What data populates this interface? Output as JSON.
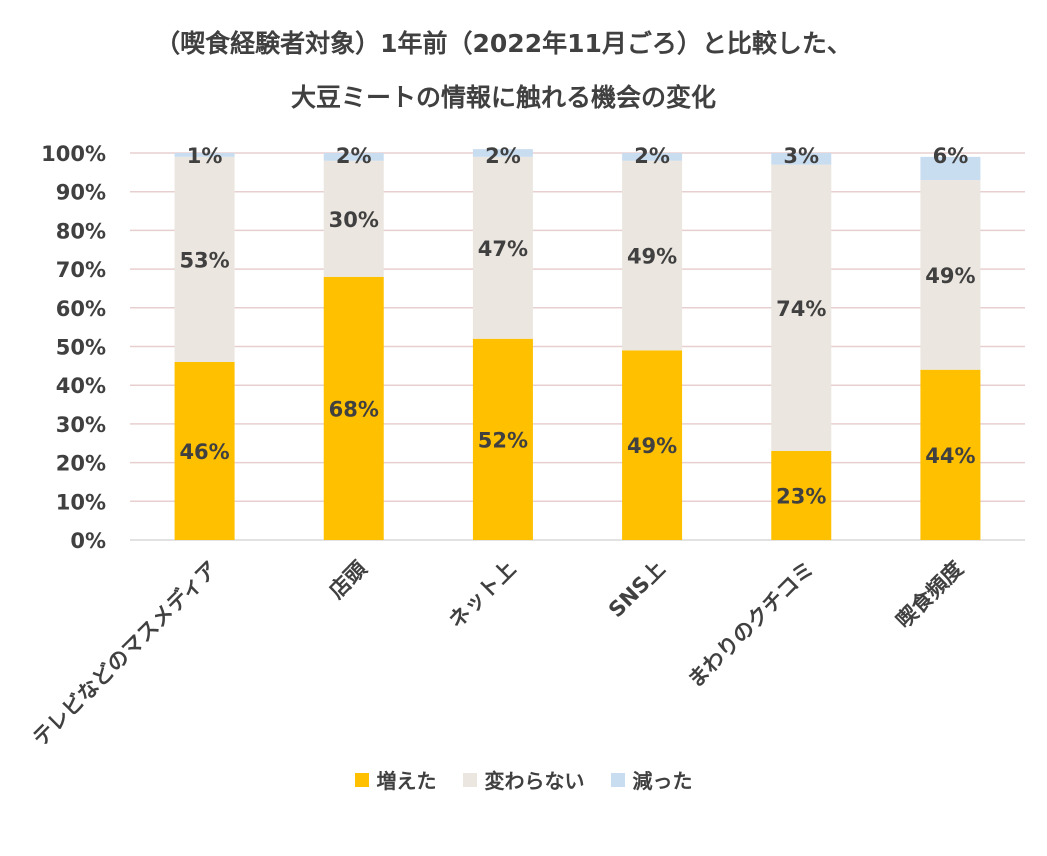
{
  "chart_data": {
    "type": "bar",
    "stacked": true,
    "title": [
      "（喫食経験者対象）1年前（2022年11月ごろ）と比較した、",
      "大豆ミートの情報に触れる機会の変化"
    ],
    "categories": [
      "テレビなどのマスメディア",
      "店頭",
      "ネット上",
      "SNS上",
      "まわりのクチコミ",
      "喫食頻度"
    ],
    "series": [
      {
        "name": "増えた",
        "color": "#FFC000",
        "values": [
          46,
          68,
          52,
          49,
          23,
          44
        ]
      },
      {
        "name": "変わらない",
        "color": "#EBE6DF",
        "values": [
          53,
          30,
          47,
          49,
          74,
          49
        ]
      },
      {
        "name": "減った",
        "color": "#C9DDF1",
        "values": [
          1,
          2,
          2,
          2,
          3,
          6
        ]
      }
    ],
    "ylim": [
      0,
      100
    ],
    "yticks": [
      "0%",
      "10%",
      "20%",
      "30%",
      "40%",
      "50%",
      "60%",
      "70%",
      "80%",
      "90%",
      "100%"
    ],
    "legend_position": "bottom",
    "grid": true,
    "gridline_color": "#E8CFCF"
  }
}
